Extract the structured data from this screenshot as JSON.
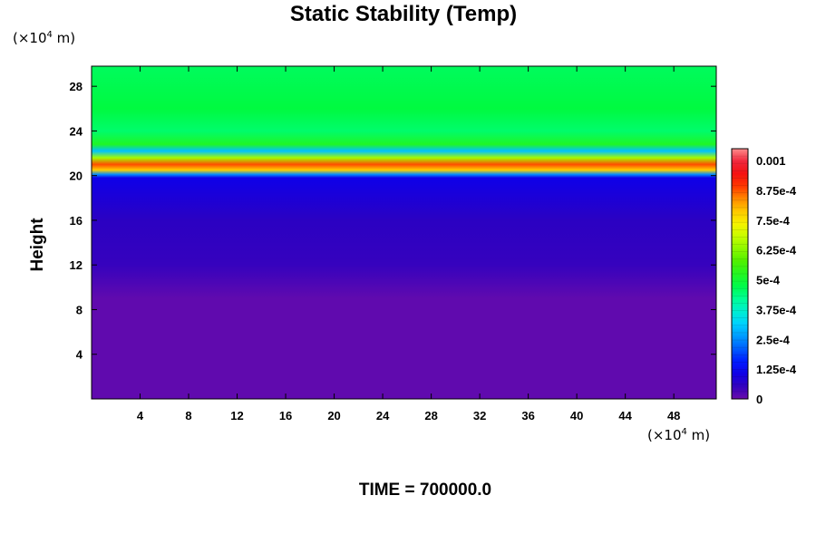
{
  "chart_data": {
    "type": "heatmap",
    "title": "Static Stability (Temp)",
    "xlabel": "",
    "ylabel": "Height",
    "x_unit": {
      "prefix": "(×10",
      "exp": "4",
      "suffix": " m)"
    },
    "y_unit": {
      "prefix": "(×10",
      "exp": "4",
      "suffix": " m)"
    },
    "xlim": [
      0,
      51.5
    ],
    "ylim": [
      0,
      29.8
    ],
    "x_ticks": [
      4,
      8,
      12,
      16,
      20,
      24,
      28,
      32,
      36,
      40,
      44,
      48
    ],
    "y_ticks": [
      4,
      8,
      12,
      16,
      20,
      24,
      28
    ],
    "colorbar": {
      "min": 0,
      "max": 0.00105,
      "tick_values": [
        0,
        0.000125,
        0.00025,
        0.000375,
        0.0005,
        0.000625,
        0.00075,
        0.000875,
        0.001
      ],
      "tick_labels": [
        "0",
        "1.25e-4",
        "2.5e-4",
        "3.75e-4",
        "5e-4",
        "6.25e-4",
        "7.5e-4",
        "8.75e-4",
        "0.001"
      ]
    },
    "profile": {
      "heights": [
        0,
        9,
        12,
        16,
        19.8,
        20.1,
        20.5,
        21.0,
        21.6,
        22.2,
        22.8,
        24,
        26,
        29.8
      ],
      "values": [
        1e-05,
        1e-05,
        5e-05,
        6e-05,
        0.00011,
        0.00025,
        0.00078,
        0.00088,
        0.00065,
        0.0003,
        0.00052,
        0.00045,
        0.00048,
        0.00046
      ]
    }
  },
  "footer": "TIME = 700000.0"
}
